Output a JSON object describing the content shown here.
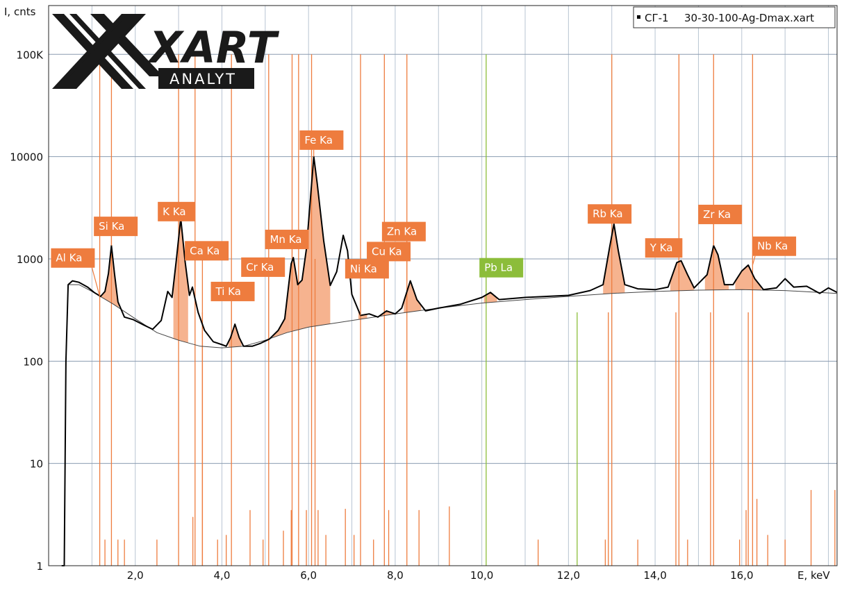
{
  "chart_data": {
    "type": "line",
    "title": "",
    "ylabel": "I, cnts",
    "xlabel": "E, keV",
    "yscale": "log",
    "xlim": [
      0,
      18.2
    ],
    "ylim": [
      1,
      300000
    ],
    "grid": true,
    "x_ticks": [
      "2,0",
      "4,0",
      "6,0",
      "8,0",
      "10,0",
      "12,0",
      "14,0",
      "16,0"
    ],
    "x_tick_values": [
      2,
      4,
      6,
      8,
      10,
      12,
      14,
      16
    ],
    "y_ticks": [
      "1",
      "10",
      "100",
      "1000",
      "10000",
      "100K"
    ],
    "y_tick_values": [
      1,
      10,
      100,
      1000,
      10000,
      100000
    ],
    "legend": {
      "position": "top-right",
      "sample": "СГ-1",
      "file": "30-30-100-Ag-Dmax.xart"
    },
    "logo": {
      "mark": "XART",
      "sub": "ANALYT"
    },
    "colors": {
      "spectrum": "#000000",
      "background_curve": "#444444",
      "peak_fill": "#f6b38f",
      "line_orange": "#ee7c3e",
      "line_green": "#8cbd3a",
      "grid": "#8a9bb0"
    },
    "spectrum": {
      "name": "СГ-1",
      "points": [
        [
          0.3,
          1
        ],
        [
          0.36,
          1
        ],
        [
          0.4,
          100
        ],
        [
          0.45,
          560
        ],
        [
          0.55,
          610
        ],
        [
          0.7,
          590
        ],
        [
          0.9,
          530
        ],
        [
          1.05,
          470
        ],
        [
          1.2,
          430
        ],
        [
          1.3,
          480
        ],
        [
          1.38,
          720
        ],
        [
          1.45,
          1350
        ],
        [
          1.52,
          720
        ],
        [
          1.6,
          380
        ],
        [
          1.75,
          270
        ],
        [
          1.95,
          255
        ],
        [
          2.2,
          225
        ],
        [
          2.4,
          205
        ],
        [
          2.6,
          250
        ],
        [
          2.75,
          480
        ],
        [
          2.85,
          420
        ],
        [
          2.95,
          1000
        ],
        [
          3.05,
          2500
        ],
        [
          3.15,
          950
        ],
        [
          3.25,
          440
        ],
        [
          3.32,
          530
        ],
        [
          3.45,
          300
        ],
        [
          3.6,
          200
        ],
        [
          3.8,
          155
        ],
        [
          4.0,
          145
        ],
        [
          4.1,
          140
        ],
        [
          4.2,
          170
        ],
        [
          4.3,
          230
        ],
        [
          4.4,
          170
        ],
        [
          4.5,
          140
        ],
        [
          4.7,
          140
        ],
        [
          4.9,
          150
        ],
        [
          5.1,
          165
        ],
        [
          5.3,
          200
        ],
        [
          5.45,
          260
        ],
        [
          5.6,
          900
        ],
        [
          5.65,
          1030
        ],
        [
          5.75,
          560
        ],
        [
          5.85,
          620
        ],
        [
          5.95,
          1250
        ],
        [
          6.05,
          4200
        ],
        [
          6.12,
          10000
        ],
        [
          6.2,
          5500
        ],
        [
          6.35,
          1500
        ],
        [
          6.5,
          550
        ],
        [
          6.65,
          750
        ],
        [
          6.8,
          1700
        ],
        [
          6.9,
          1200
        ],
        [
          7.0,
          450
        ],
        [
          7.2,
          280
        ],
        [
          7.4,
          290
        ],
        [
          7.6,
          270
        ],
        [
          7.8,
          310
        ],
        [
          8.0,
          290
        ],
        [
          8.15,
          330
        ],
        [
          8.35,
          610
        ],
        [
          8.5,
          400
        ],
        [
          8.7,
          310
        ],
        [
          9.0,
          330
        ],
        [
          9.5,
          360
        ],
        [
          10.0,
          420
        ],
        [
          10.2,
          470
        ],
        [
          10.4,
          400
        ],
        [
          11.0,
          420
        ],
        [
          11.5,
          430
        ],
        [
          12.0,
          440
        ],
        [
          12.5,
          490
        ],
        [
          12.8,
          560
        ],
        [
          12.95,
          1300
        ],
        [
          13.05,
          2200
        ],
        [
          13.15,
          1200
        ],
        [
          13.3,
          560
        ],
        [
          13.6,
          510
        ],
        [
          14.0,
          500
        ],
        [
          14.3,
          530
        ],
        [
          14.5,
          920
        ],
        [
          14.6,
          960
        ],
        [
          14.75,
          700
        ],
        [
          14.9,
          520
        ],
        [
          15.2,
          700
        ],
        [
          15.35,
          1350
        ],
        [
          15.45,
          1100
        ],
        [
          15.6,
          560
        ],
        [
          15.8,
          560
        ],
        [
          16.0,
          760
        ],
        [
          16.15,
          870
        ],
        [
          16.3,
          640
        ],
        [
          16.5,
          500
        ],
        [
          16.8,
          520
        ],
        [
          17.0,
          640
        ],
        [
          17.2,
          530
        ],
        [
          17.5,
          540
        ],
        [
          17.8,
          460
        ],
        [
          18.0,
          520
        ],
        [
          18.2,
          470
        ]
      ]
    },
    "background_curve": {
      "points": [
        [
          0.45,
          560
        ],
        [
          0.7,
          560
        ],
        [
          1.0,
          480
        ],
        [
          1.5,
          360
        ],
        [
          2.0,
          260
        ],
        [
          2.5,
          190
        ],
        [
          3.0,
          160
        ],
        [
          3.5,
          140
        ],
        [
          4.0,
          135
        ],
        [
          4.5,
          140
        ],
        [
          5.0,
          160
        ],
        [
          5.5,
          190
        ],
        [
          6.0,
          215
        ],
        [
          7.0,
          250
        ],
        [
          8.0,
          290
        ],
        [
          9.0,
          330
        ],
        [
          10.0,
          370
        ],
        [
          11.0,
          400
        ],
        [
          12.0,
          430
        ],
        [
          13.0,
          460
        ],
        [
          14.0,
          480
        ],
        [
          15.0,
          495
        ],
        [
          16.0,
          500
        ],
        [
          17.0,
          490
        ],
        [
          18.2,
          460
        ]
      ]
    },
    "peak_regions": [
      [
        1.18,
        1.62
      ],
      [
        2.88,
        3.22
      ],
      [
        4.15,
        4.45
      ],
      [
        5.18,
        5.55
      ],
      [
        5.55,
        6.5
      ],
      [
        7.15,
        7.35
      ],
      [
        7.65,
        7.95
      ],
      [
        8.2,
        8.6
      ],
      [
        10.05,
        10.35
      ],
      [
        12.8,
        13.3
      ],
      [
        14.35,
        14.9
      ],
      [
        15.15,
        15.7
      ],
      [
        15.85,
        16.45
      ]
    ],
    "lines": [
      {
        "x": 1.18,
        "top": 100000,
        "color": "orange"
      },
      {
        "x": 1.45,
        "top": 100000,
        "color": "orange"
      },
      {
        "x": 3.0,
        "top": 100000,
        "color": "orange"
      },
      {
        "x": 3.38,
        "top": 100000,
        "color": "orange"
      },
      {
        "x": 4.22,
        "top": 100000,
        "color": "orange"
      },
      {
        "x": 5.08,
        "top": 100000,
        "color": "orange"
      },
      {
        "x": 5.62,
        "top": 100000,
        "color": "orange"
      },
      {
        "x": 5.77,
        "top": 100000,
        "color": "orange"
      },
      {
        "x": 6.07,
        "top": 100000,
        "color": "orange"
      },
      {
        "x": 7.2,
        "top": 100000,
        "color": "orange"
      },
      {
        "x": 7.75,
        "top": 100000,
        "color": "orange"
      },
      {
        "x": 8.27,
        "top": 100000,
        "color": "orange"
      },
      {
        "x": 13.0,
        "top": 100000,
        "color": "orange"
      },
      {
        "x": 14.55,
        "top": 100000,
        "color": "orange"
      },
      {
        "x": 15.35,
        "top": 100000,
        "color": "orange"
      },
      {
        "x": 16.25,
        "top": 100000,
        "color": "orange"
      },
      {
        "x": 10.1,
        "top": 100000,
        "color": "green"
      },
      {
        "x": 3.55,
        "top": 1000,
        "color": "orange"
      },
      {
        "x": 3.55,
        "top": 300,
        "color": "orange"
      },
      {
        "x": 6.15,
        "top": 1000,
        "color": "orange"
      },
      {
        "x": 12.92,
        "top": 300,
        "color": "orange"
      },
      {
        "x": 14.48,
        "top": 300,
        "color": "orange"
      },
      {
        "x": 15.28,
        "top": 300,
        "color": "orange"
      },
      {
        "x": 16.15,
        "top": 300,
        "color": "orange"
      },
      {
        "x": 12.2,
        "top": 300,
        "color": "green"
      },
      {
        "x": 1.3,
        "top": 1.8,
        "color": "orange"
      },
      {
        "x": 1.6,
        "top": 1.8,
        "color": "orange"
      },
      {
        "x": 1.75,
        "top": 1.8,
        "color": "orange"
      },
      {
        "x": 2.5,
        "top": 1.8,
        "color": "orange"
      },
      {
        "x": 3.33,
        "top": 3.0,
        "color": "orange"
      },
      {
        "x": 3.9,
        "top": 1.8,
        "color": "orange"
      },
      {
        "x": 4.1,
        "top": 2.0,
        "color": "orange"
      },
      {
        "x": 4.65,
        "top": 3.5,
        "color": "orange"
      },
      {
        "x": 4.95,
        "top": 1.8,
        "color": "orange"
      },
      {
        "x": 5.42,
        "top": 2.2,
        "color": "orange"
      },
      {
        "x": 5.6,
        "top": 3.5,
        "color": "orange"
      },
      {
        "x": 5.95,
        "top": 3.5,
        "color": "orange"
      },
      {
        "x": 6.22,
        "top": 3.5,
        "color": "orange"
      },
      {
        "x": 6.4,
        "top": 2.0,
        "color": "orange"
      },
      {
        "x": 6.85,
        "top": 3.6,
        "color": "orange"
      },
      {
        "x": 7.05,
        "top": 2.0,
        "color": "orange"
      },
      {
        "x": 7.5,
        "top": 1.8,
        "color": "orange"
      },
      {
        "x": 7.85,
        "top": 3.5,
        "color": "orange"
      },
      {
        "x": 8.55,
        "top": 3.5,
        "color": "orange"
      },
      {
        "x": 9.25,
        "top": 3.8,
        "color": "orange"
      },
      {
        "x": 11.3,
        "top": 1.8,
        "color": "orange"
      },
      {
        "x": 12.85,
        "top": 1.8,
        "color": "orange"
      },
      {
        "x": 13.6,
        "top": 1.8,
        "color": "orange"
      },
      {
        "x": 14.75,
        "top": 1.8,
        "color": "orange"
      },
      {
        "x": 15.95,
        "top": 1.8,
        "color": "orange"
      },
      {
        "x": 16.1,
        "top": 3.5,
        "color": "orange"
      },
      {
        "x": 16.35,
        "top": 4.5,
        "color": "orange"
      },
      {
        "x": 16.6,
        "top": 2.0,
        "color": "orange"
      },
      {
        "x": 17.0,
        "top": 1.8,
        "color": "orange"
      },
      {
        "x": 17.6,
        "top": 5.5,
        "color": "orange"
      },
      {
        "x": 18.15,
        "top": 5.5,
        "color": "orange"
      }
    ],
    "peaks": [
      {
        "label": "Al Ka",
        "x": 1.18,
        "y": 430,
        "lx": 0.56,
        "ly": 1020,
        "color": "orange"
      },
      {
        "label": "Si Ka",
        "x": 1.45,
        "y": 1350,
        "lx": 1.55,
        "ly": 2080,
        "color": "orange"
      },
      {
        "label": "K Ka",
        "x": 3.05,
        "y": 2500,
        "lx": 2.95,
        "ly": 2900,
        "color": "orange"
      },
      {
        "label": "Ca Ka",
        "x": 3.38,
        "y": 530,
        "lx": 3.65,
        "ly": 1200,
        "color": "orange"
      },
      {
        "label": "Ti Ka",
        "x": 4.22,
        "y": 230,
        "lx": 4.25,
        "ly": 480,
        "color": "orange"
      },
      {
        "label": "Cr Ka",
        "x": 5.08,
        "y": 170,
        "lx": 4.95,
        "ly": 830,
        "color": "orange"
      },
      {
        "label": "Mn Ka",
        "x": 5.62,
        "y": 1030,
        "lx": 5.5,
        "ly": 1550,
        "color": "orange"
      },
      {
        "label": "Fe Ka",
        "x": 6.12,
        "y": 10000,
        "lx": 6.3,
        "ly": 14500,
        "color": "orange"
      },
      {
        "label": "Ni Ka",
        "x": 7.2,
        "y": 280,
        "lx": 7.35,
        "ly": 800,
        "color": "orange"
      },
      {
        "label": "Cu Ka",
        "x": 7.75,
        "y": 310,
        "lx": 7.85,
        "ly": 1180,
        "color": "orange"
      },
      {
        "label": "Zn Ka",
        "x": 8.27,
        "y": 610,
        "lx": 8.2,
        "ly": 1850,
        "color": "orange"
      },
      {
        "label": "Pb La",
        "x": 10.1,
        "y": 470,
        "lx": 10.45,
        "ly": 820,
        "color": "green"
      },
      {
        "label": "Rb Ka",
        "x": 13.0,
        "y": 2200,
        "lx": 12.95,
        "ly": 2750,
        "color": "orange"
      },
      {
        "label": "Y Ka",
        "x": 14.55,
        "y": 960,
        "lx": 14.2,
        "ly": 1280,
        "color": "orange"
      },
      {
        "label": "Zr Ka",
        "x": 15.35,
        "y": 1350,
        "lx": 15.5,
        "ly": 2720,
        "color": "orange"
      },
      {
        "label": "Nb Ka",
        "x": 16.25,
        "y": 870,
        "lx": 16.75,
        "ly": 1330,
        "color": "orange"
      }
    ]
  }
}
